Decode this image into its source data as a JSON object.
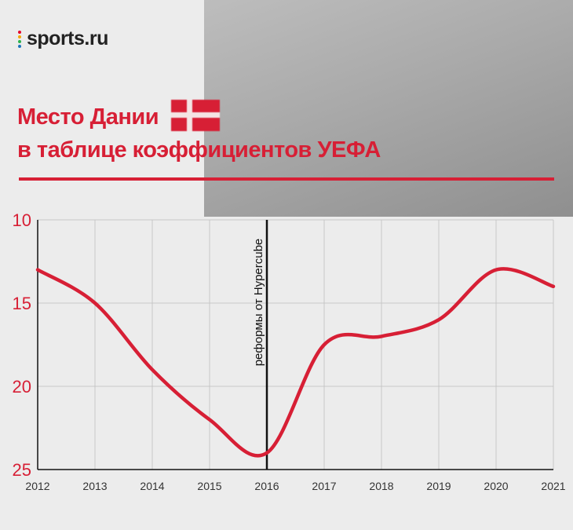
{
  "brand": {
    "logo_text": "sports.ru"
  },
  "header": {
    "title_line1": "Место Дании",
    "title_line2": "в таблице коэффициентов УЕФА"
  },
  "colors": {
    "accent": "#d71f35",
    "background": "#ececec",
    "grid": "#c7c7c7",
    "marker": "#111111"
  },
  "chart_data": {
    "type": "line",
    "x": [
      2012,
      2013,
      2014,
      2015,
      2016,
      2017,
      2018,
      2019,
      2020,
      2021
    ],
    "x_tick_labels": [
      "2012",
      "2013",
      "2014",
      "2015",
      "2016",
      "2017",
      "2018",
      "2019",
      "2020",
      "2021"
    ],
    "series": [
      {
        "values": [
          13,
          15,
          19,
          22,
          24,
          17.5,
          17,
          16,
          13,
          14
        ]
      }
    ],
    "y_ticks": [
      10,
      15,
      20,
      25
    ],
    "y_tick_labels": [
      "10",
      "15",
      "20",
      "25"
    ],
    "ylim": [
      10,
      25
    ],
    "y_inverted": true,
    "xlim": [
      2012,
      2021
    ],
    "grid": true,
    "annotations": [
      {
        "x": 2016,
        "text": "реформы от Hypercube"
      }
    ]
  }
}
